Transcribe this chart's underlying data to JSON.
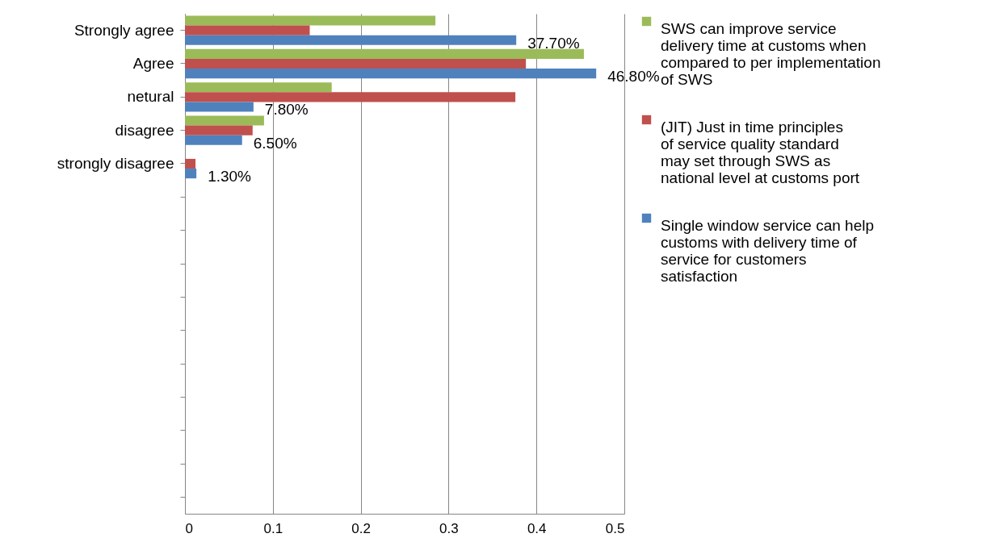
{
  "chart_data": {
    "type": "bar",
    "orientation": "horizontal",
    "categories": [
      "Strongly agree",
      "Agree",
      "netural",
      "disagree",
      "strongly disagree",
      null,
      null,
      null,
      null,
      null,
      null,
      null,
      null,
      null,
      null
    ],
    "series": [
      {
        "name": "SWS can improve service delivery time at customs when compared to per implementation of SWS",
        "color": "#9bbb59",
        "values": [
          0.285,
          0.454,
          0.167,
          0.09,
          0,
          null,
          null,
          null,
          null,
          null,
          null,
          null,
          null,
          null,
          null
        ]
      },
      {
        "name": "(JIT) Just in time principles of service quality standard may set through SWS as national level at customs port",
        "color": "#c0504d",
        "values": [
          0.142,
          0.388,
          0.376,
          0.077,
          0.012,
          null,
          null,
          null,
          null,
          null,
          null,
          null,
          null,
          null,
          null
        ]
      },
      {
        "name": "Single window service can help customs with delivery time of service for customers satisfaction",
        "color": "#4f81bd",
        "values": [
          0.377,
          0.468,
          0.078,
          0.065,
          0.013,
          null,
          null,
          null,
          null,
          null,
          null,
          null,
          null,
          null,
          null
        ],
        "value_labels": [
          "37.70%",
          "46.80%",
          "7.80%",
          "6.50%",
          "1.30%",
          null,
          null,
          null,
          null,
          null,
          null,
          null,
          null,
          null,
          null
        ]
      }
    ],
    "xlim": [
      0,
      0.5
    ],
    "xticks": [
      0,
      0.1,
      0.2,
      0.3,
      0.4,
      0.5
    ],
    "grid": "x",
    "legend": "right"
  }
}
